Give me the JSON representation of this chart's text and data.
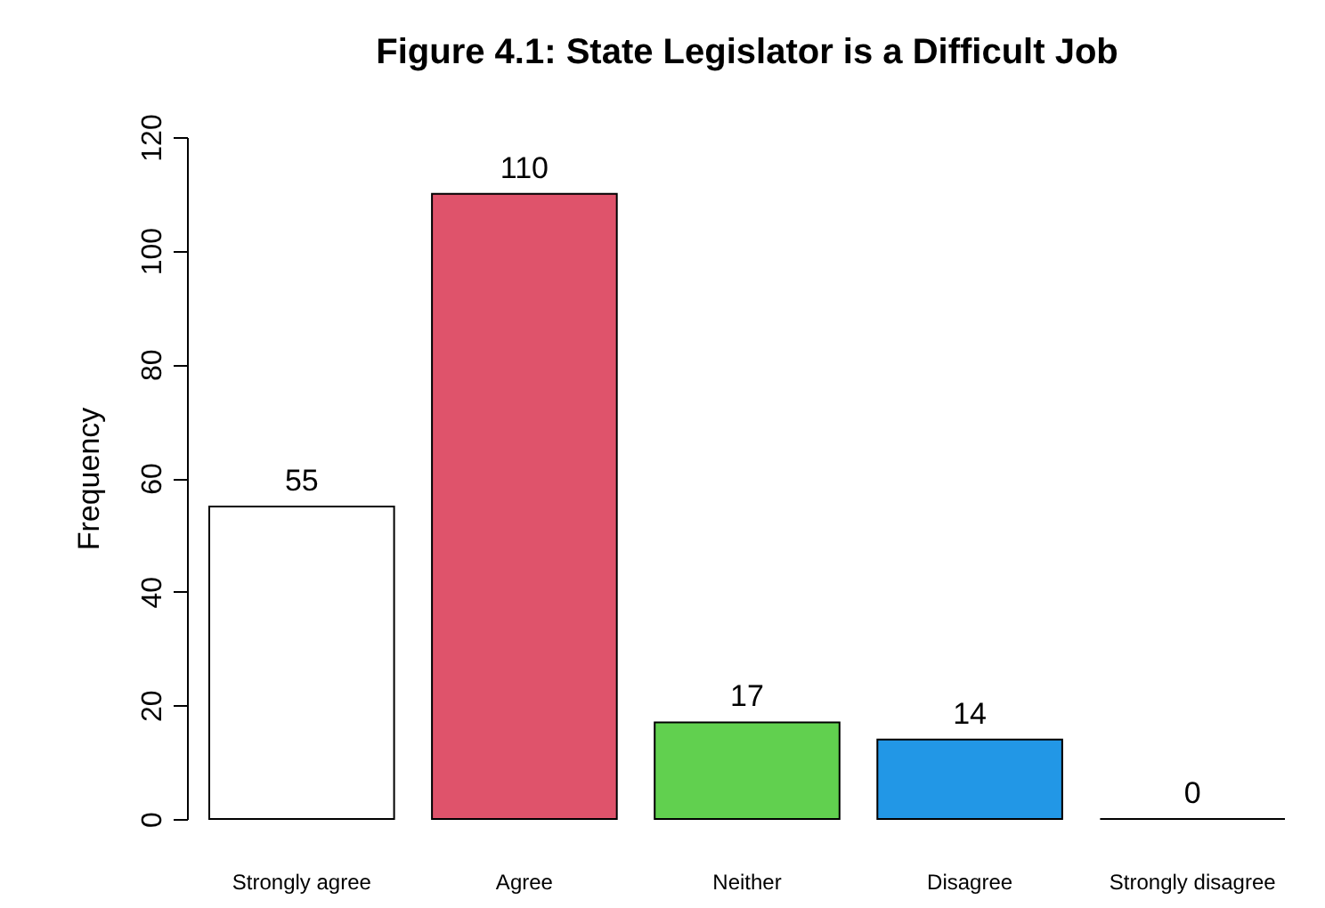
{
  "chart_data": {
    "type": "bar",
    "title": "Figure 4.1: State Legislator is a Difficult Job",
    "ylabel": "Frequency",
    "categories": [
      "Strongly agree",
      "Agree",
      "Neither",
      "Disagree",
      "Strongly disagree"
    ],
    "values": [
      55,
      110,
      17,
      14,
      0
    ],
    "colors": [
      "#ffffff",
      "#df536b",
      "#61d04f",
      "#2297e6",
      "#000000"
    ],
    "ylim": [
      0,
      120
    ],
    "yticks": [
      0,
      20,
      40,
      60,
      80,
      100,
      120
    ],
    "data_labels": true,
    "grid": false,
    "legend": false
  }
}
